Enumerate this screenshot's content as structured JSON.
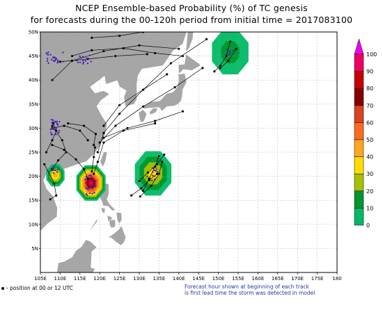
{
  "title_line1": "NCEP Ensemble-based Probability (%) of TC genesis",
  "title_line2": "for forecasts during the 00-120h period from initial time = 2017083100",
  "map": {
    "lon_ticks": [
      "105E",
      "110E",
      "115E",
      "120E",
      "125E",
      "130E",
      "135E",
      "140E",
      "145E",
      "150E",
      "155E",
      "160E",
      "165E",
      "170E",
      "175E",
      "180"
    ],
    "lat_ticks": [
      "5N",
      "10N",
      "15N",
      "20N",
      "25N",
      "30N",
      "35N",
      "40N",
      "45N",
      "50N"
    ],
    "extent": {
      "lon": [
        105,
        180
      ],
      "lat": [
        0,
        50
      ]
    },
    "grid": true,
    "land_color": "#a6a6a6",
    "ocean_color": "#ffffff",
    "genesis_areas": [
      {
        "center_lon": 153,
        "center_lat": 45.8,
        "radius_deg": 5,
        "max_prob": 10
      },
      {
        "center_lon": 117.8,
        "center_lat": 18.6,
        "radius_deg": 4,
        "max_prob": 100
      },
      {
        "center_lon": 133.5,
        "center_lat": 20.6,
        "radius_deg": 5,
        "max_prob": 30
      },
      {
        "center_lon": 108.8,
        "center_lat": 20.2,
        "radius_deg": 2.5,
        "max_prob": 40
      }
    ]
  },
  "colorbar": {
    "levels": [
      "100",
      "90",
      "80",
      "70",
      "60",
      "50",
      "40",
      "30",
      "20",
      "10",
      "0"
    ],
    "colors": [
      "#ef00ef",
      "#ee0062",
      "#c80000",
      "#850000",
      "#d94321",
      "#ff6a21",
      "#ffa621",
      "#ffdd00",
      "#a6c000",
      "#009630",
      "#00b964"
    ]
  },
  "footer": {
    "legend_text": "- position at 00 or 12 UTC",
    "note_line1": "Forecast hour shown at beginning of each track",
    "note_line2": "is first lead time the storm was detected in model"
  }
}
